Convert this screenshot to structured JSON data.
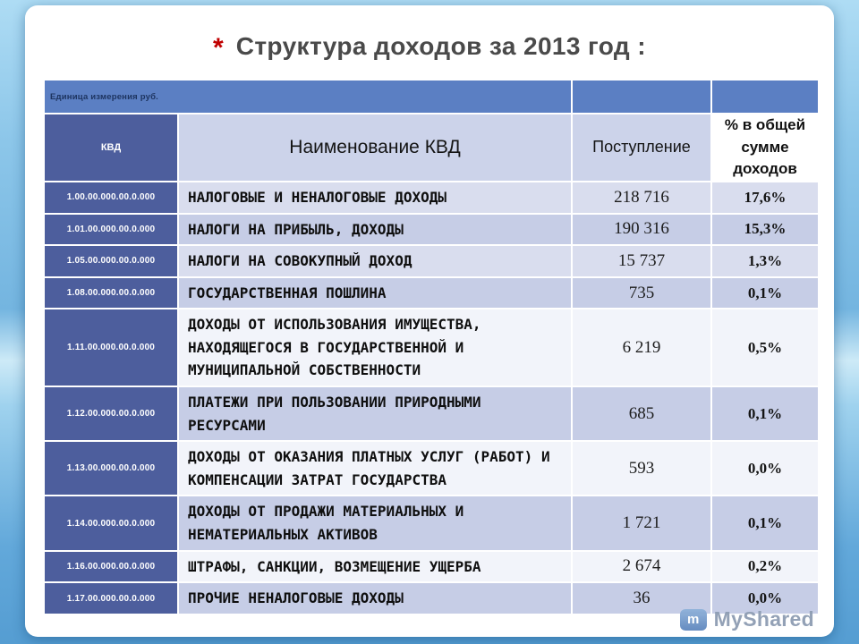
{
  "slide": {
    "bullet": "*",
    "title": "Структура доходов за 2013 год :"
  },
  "table": {
    "unit_label": "Единица измерения руб.",
    "columns": {
      "code": "КВД",
      "name": "Наименование КВД",
      "income": "Поступление",
      "percent": "% в общей сумме доходов"
    },
    "rows": [
      {
        "code": "1.00.00.000.00.0.000",
        "name": "НАЛОГОВЫЕ И НЕНАЛОГОВЫЕ ДОХОДЫ",
        "income": "218 716",
        "percent": "17,6%",
        "band": "a"
      },
      {
        "code": "1.01.00.000.00.0.000",
        "name": "НАЛОГИ НА ПРИБЫЛЬ, ДОХОДЫ",
        "income": "190 316",
        "percent": "15,3%",
        "band": "b"
      },
      {
        "code": "1.05.00.000.00.0.000",
        "name": "НАЛОГИ НА СОВОКУПНЫЙ ДОХОД",
        "income": "15 737",
        "percent": "1,3%",
        "band": "a"
      },
      {
        "code": "1.08.00.000.00.0.000",
        "name": "ГОСУДАРСТВЕННАЯ ПОШЛИНА",
        "income": "735",
        "percent": "0,1%",
        "band": "b"
      },
      {
        "code": "1.11.00.000.00.0.000",
        "name": "ДОХОДЫ ОТ ИСПОЛЬЗОВАНИЯ ИМУЩЕСТВА, НАХОДЯЩЕГОСЯ В ГОСУДАРСТВЕННОЙ И МУНИЦИПАЛЬНОЙ СОБСТВЕННОСТИ",
        "income": "6 219",
        "percent": "0,5%",
        "band": "c"
      },
      {
        "code": "1.12.00.000.00.0.000",
        "name": "ПЛАТЕЖИ ПРИ ПОЛЬЗОВАНИИ ПРИРОДНЫМИ РЕСУРСАМИ",
        "income": "685",
        "percent": "0,1%",
        "band": "b"
      },
      {
        "code": "1.13.00.000.00.0.000",
        "name": "ДОХОДЫ ОТ ОКАЗАНИЯ ПЛАТНЫХ УСЛУГ (РАБОТ) И КОМПЕНСАЦИИ ЗАТРАТ ГОСУДАРСТВА",
        "income": "593",
        "percent": "0,0%",
        "band": "c"
      },
      {
        "code": "1.14.00.000.00.0.000",
        "name": "ДОХОДЫ ОТ ПРОДАЖИ МАТЕРИАЛЬНЫХ И НЕМАТЕРИАЛЬНЫХ АКТИВОВ",
        "income": "1 721",
        "percent": "0,1%",
        "band": "b"
      },
      {
        "code": "1.16.00.000.00.0.000",
        "name": "ШТРАФЫ, САНКЦИИ, ВОЗМЕЩЕНИЕ УЩЕРБА",
        "income": "2 674",
        "percent": "0,2%",
        "band": "c"
      },
      {
        "code": "1.17.00.000.00.0.000",
        "name": "ПРОЧИЕ НЕНАЛОГОВЫЕ ДОХОДЫ",
        "income": "36",
        "percent": "0,0%",
        "band": "b"
      }
    ]
  },
  "watermark": {
    "brand": "MyShared",
    "icon_letter": "m"
  },
  "theme": {
    "header_bar_blue": "#5b7fc3",
    "code_column_blue": "#4d5e9d",
    "header_light_blue": "#ccd3ea",
    "row_band_light": "#d9ddee",
    "row_band_medium": "#c6cde6",
    "row_band_white": "#f2f4fa",
    "title_color": "#4a4a4a",
    "accent_red": "#c00000",
    "background_blue": "#74b5e0"
  }
}
